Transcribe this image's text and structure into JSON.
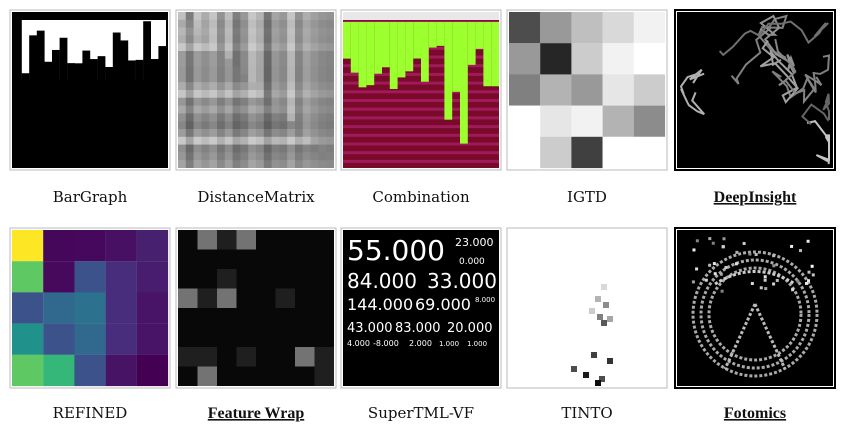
{
  "panels": [
    {
      "label": "BarGraph"
    },
    {
      "label": "DistanceMatrix"
    },
    {
      "label": "Combination"
    },
    {
      "label": "IGTD"
    },
    {
      "label": "DeepInsight"
    },
    {
      "label": "REFINED"
    },
    {
      "label": "Feature Wrap"
    },
    {
      "label": "SuperTML-VF",
      "image_text": [
        "55.000",
        "23.000",
        "0.000",
        "84.000",
        "33.000",
        "144.000",
        "69.000",
        "8.000",
        "43.000",
        "83.000",
        "20.000",
        "4.000",
        "-8.000",
        "2.000",
        "1.000",
        "1.000"
      ]
    },
    {
      "label": "TINTO"
    },
    {
      "label": "Fotomics"
    }
  ]
}
